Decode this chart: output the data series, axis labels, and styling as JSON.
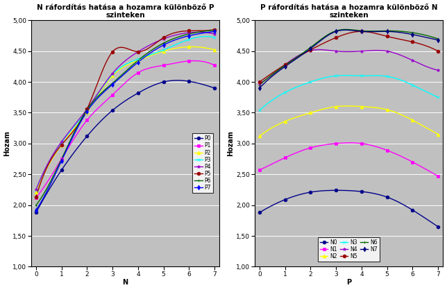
{
  "title1": "N ráfordítás hatása a hozamra különböző P\nszinteken",
  "title2": "P ráfordítás hatása a hozamra különböző N\nszinteken",
  "xlabel1": "N",
  "xlabel2": "P",
  "ylabel": "Hozam",
  "ylim": [
    1.0,
    5.0
  ],
  "yticks": [
    1.0,
    1.5,
    2.0,
    2.5,
    3.0,
    3.5,
    4.0,
    4.5,
    5.0
  ],
  "xticks": [
    0,
    1,
    2,
    3,
    4,
    5,
    6,
    7
  ],
  "chart1_data": [
    {
      "label": "P0",
      "color": "#00008B",
      "marker": "o",
      "values": [
        1.88,
        2.57,
        3.12,
        3.54,
        3.82,
        4.0,
        4.01,
        3.9
      ]
    },
    {
      "label": "P1",
      "color": "#FF00FF",
      "marker": "s",
      "values": [
        2.12,
        2.75,
        3.38,
        3.79,
        4.15,
        4.27,
        4.34,
        4.27
      ]
    },
    {
      "label": "P2",
      "color": "#FFFF00",
      "marker": "^",
      "values": [
        2.21,
        2.98,
        3.51,
        4.1,
        4.35,
        4.5,
        4.57,
        4.52
      ]
    },
    {
      "label": "P3",
      "color": "#00FFFF",
      "marker": "x",
      "values": [
        2.24,
        3.02,
        3.54,
        4.12,
        4.37,
        4.52,
        4.69,
        4.72
      ]
    },
    {
      "label": "P4",
      "color": "#9900CC",
      "marker": "*",
      "values": [
        2.25,
        3.03,
        3.56,
        4.14,
        4.49,
        4.7,
        4.8,
        4.78
      ]
    },
    {
      "label": "P5",
      "color": "#990000",
      "marker": "o",
      "values": [
        2.13,
        2.98,
        3.56,
        4.49,
        4.49,
        4.72,
        4.83,
        4.85
      ]
    },
    {
      "label": "P6",
      "color": "#006600",
      "marker": "+",
      "values": [
        2.0,
        2.75,
        3.55,
        3.98,
        4.35,
        4.63,
        4.78,
        4.84
      ]
    },
    {
      "label": "P7",
      "color": "#0000FF",
      "marker": "d",
      "values": [
        1.92,
        2.72,
        3.52,
        3.96,
        4.32,
        4.6,
        4.75,
        4.82
      ]
    }
  ],
  "chart2_data": [
    {
      "label": "N0",
      "color": "#00008B",
      "marker": "o",
      "values": [
        1.88,
        2.09,
        2.21,
        2.24,
        2.22,
        2.13,
        1.92,
        1.65
      ]
    },
    {
      "label": "N1",
      "color": "#FF00FF",
      "marker": "s",
      "values": [
        2.57,
        2.77,
        2.93,
        3.0,
        3.0,
        2.89,
        2.7,
        2.47
      ]
    },
    {
      "label": "N2",
      "color": "#FFFF00",
      "marker": "^",
      "values": [
        3.12,
        3.36,
        3.5,
        3.6,
        3.6,
        3.55,
        3.38,
        3.15
      ]
    },
    {
      "label": "N3",
      "color": "#00FFFF",
      "marker": "x",
      "values": [
        3.54,
        3.83,
        4.0,
        4.1,
        4.1,
        4.09,
        3.95,
        3.75
      ]
    },
    {
      "label": "N4",
      "color": "#9900CC",
      "marker": "*",
      "values": [
        3.97,
        4.28,
        4.51,
        4.5,
        4.5,
        4.5,
        4.35,
        4.19
      ]
    },
    {
      "label": "N5",
      "color": "#990000",
      "marker": "o",
      "values": [
        4.0,
        4.28,
        4.52,
        4.72,
        4.82,
        4.74,
        4.65,
        4.5
      ]
    },
    {
      "label": "N6",
      "color": "#006600",
      "marker": "+",
      "values": [
        3.95,
        4.27,
        4.56,
        4.83,
        4.83,
        4.83,
        4.8,
        4.7
      ]
    },
    {
      "label": "N7",
      "color": "#000080",
      "marker": "d",
      "values": [
        3.9,
        4.25,
        4.54,
        4.82,
        4.82,
        4.82,
        4.77,
        4.68
      ]
    }
  ],
  "bg_color": "#C0C0C0",
  "fig_width": 6.44,
  "fig_height": 4.18,
  "dpi": 100,
  "title_fontsize": 7.5,
  "label_fontsize": 7,
  "tick_fontsize": 6.5,
  "legend_fontsize": 5.5,
  "marker_size": 3.5,
  "line_width": 1.0
}
